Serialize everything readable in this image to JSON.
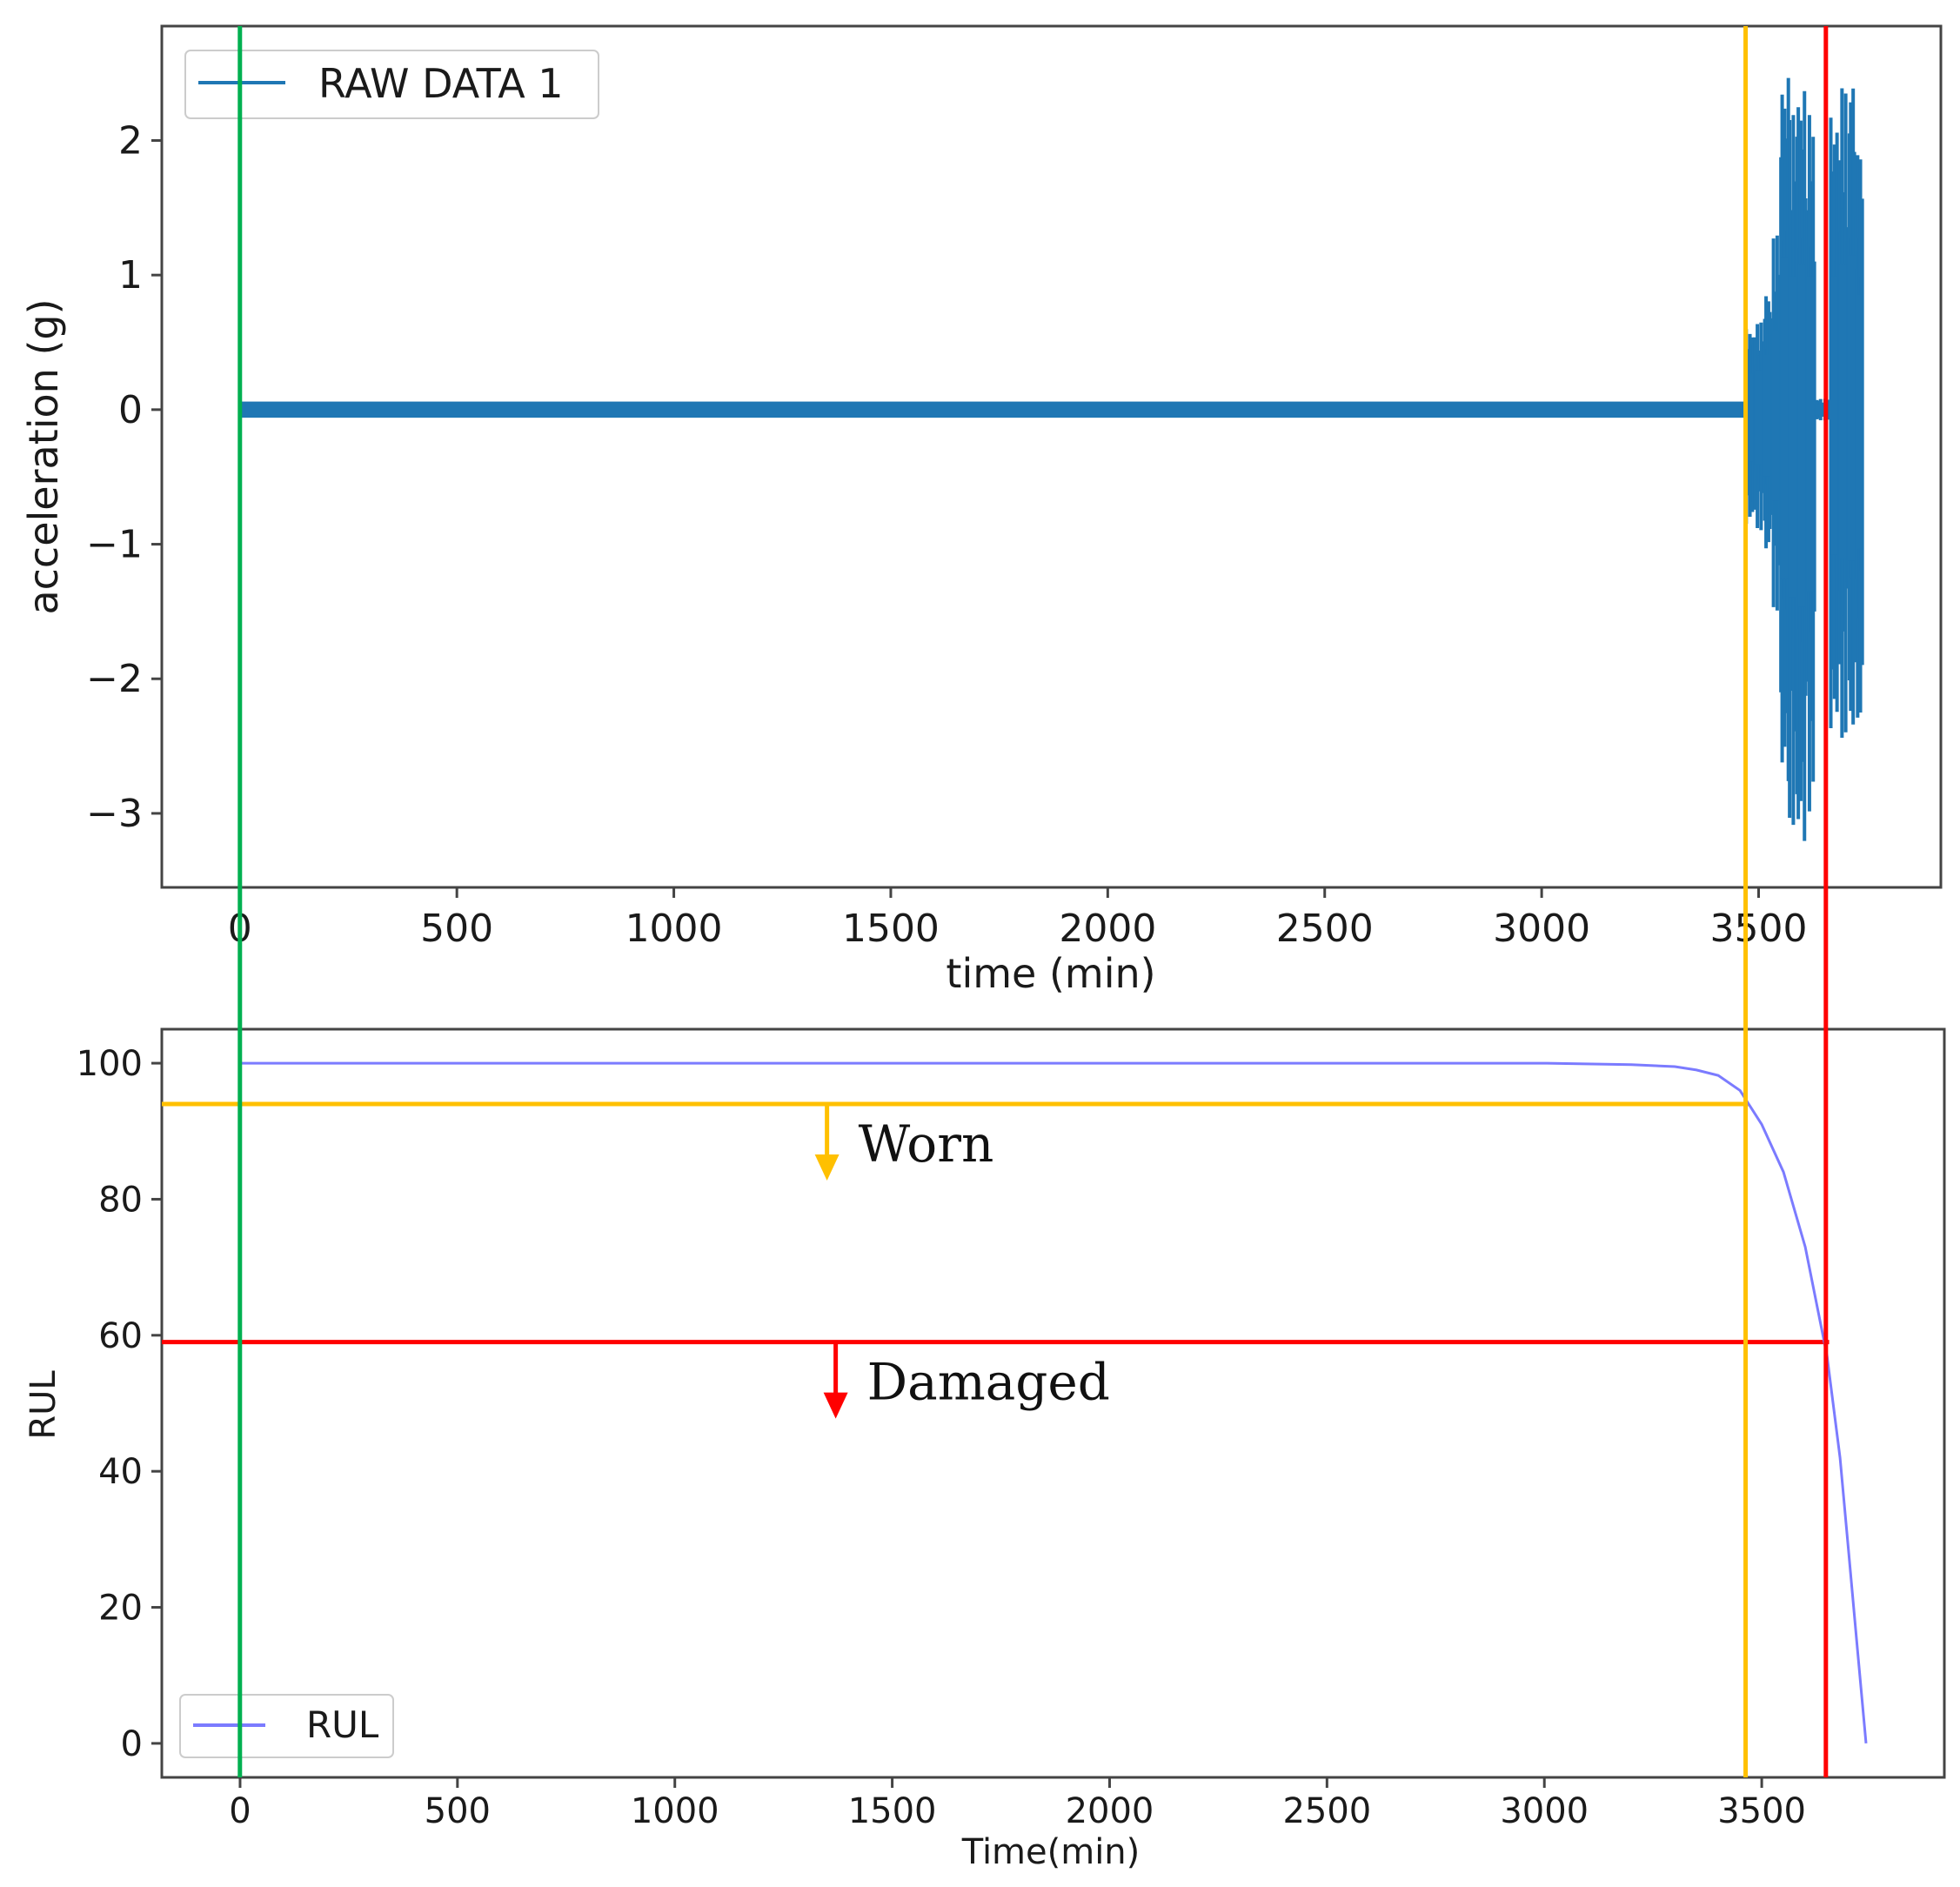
{
  "chart_data": [
    {
      "type": "line",
      "xlabel": "time (min)",
      "ylabel": "acceleration (g)",
      "xlim": [
        -180,
        3920
      ],
      "ylim": [
        -3.55,
        2.85
      ],
      "xticks": [
        0,
        500,
        1000,
        1500,
        2000,
        2500,
        3000,
        3500
      ],
      "yticks": [
        2,
        1,
        0,
        -1,
        -2,
        -3
      ],
      "ytick_labels": [
        "2",
        "1",
        "0",
        "−1",
        "−2",
        "−3"
      ],
      "legend": {
        "placement": "top-left",
        "entries": [
          "RAW DATA 1"
        ]
      },
      "grid": false,
      "series": [
        {
          "name": "RAW DATA 1",
          "color": "#1f77b4",
          "segments": [
            {
              "x_start": 0,
              "x_end": 3470,
              "min": -0.06,
              "max": 0.06
            },
            {
              "x_start": 3470,
              "x_end": 3490,
              "min": -0.85,
              "max": 0.6
            },
            {
              "x_start": 3490,
              "x_end": 3510,
              "min": -0.9,
              "max": 0.65
            },
            {
              "x_start": 3510,
              "x_end": 3530,
              "min": -1.1,
              "max": 0.9
            },
            {
              "x_start": 3530,
              "x_end": 3550,
              "min": -1.5,
              "max": 1.3
            },
            {
              "x_start": 3550,
              "x_end": 3570,
              "min": -2.8,
              "max": 2.5
            },
            {
              "x_start": 3570,
              "x_end": 3590,
              "min": -3.1,
              "max": 2.2
            },
            {
              "x_start": 3590,
              "x_end": 3610,
              "min": -3.25,
              "max": 2.4
            },
            {
              "x_start": 3610,
              "x_end": 3630,
              "min": -3.0,
              "max": 2.2
            },
            {
              "x_start": 3630,
              "x_end": 3650,
              "min": -0.08,
              "max": 0.08
            },
            {
              "x_start": 3650,
              "x_end": 3665,
              "min": -0.08,
              "max": 0.08
            },
            {
              "x_start": 3665,
              "x_end": 3685,
              "min": -2.4,
              "max": 2.2
            },
            {
              "x_start": 3685,
              "x_end": 3705,
              "min": -2.45,
              "max": 2.4
            },
            {
              "x_start": 3705,
              "x_end": 3725,
              "min": -2.5,
              "max": 2.55
            },
            {
              "x_start": 3725,
              "x_end": 3740,
              "min": -2.3,
              "max": 1.9
            }
          ]
        }
      ]
    },
    {
      "type": "line",
      "xlabel": "Time(min)",
      "ylabel": "RUL",
      "xlim": [
        -180,
        3920
      ],
      "ylim": [
        -5,
        105
      ],
      "xticks": [
        0,
        500,
        1000,
        1500,
        2000,
        2500,
        3000,
        3500
      ],
      "yticks": [
        0,
        20,
        40,
        60,
        80,
        100
      ],
      "legend": {
        "placement": "bottom-left",
        "entries": [
          "RUL"
        ]
      },
      "grid": false,
      "series": [
        {
          "name": "RUL",
          "color": "#7b7bff",
          "x": [
            0,
            500,
            1000,
            1500,
            2000,
            2500,
            3000,
            3200,
            3300,
            3350,
            3400,
            3450,
            3470,
            3500,
            3550,
            3600,
            3650,
            3680,
            3700,
            3720,
            3740
          ],
          "y": [
            100,
            100,
            100,
            100,
            100,
            100,
            100,
            99.8,
            99.5,
            99,
            98.2,
            96,
            94,
            91,
            84,
            73,
            57,
            42,
            28,
            14,
            0
          ]
        }
      ],
      "thresholds": [
        {
          "label": "Worn",
          "y": 94,
          "x_end": 3470,
          "color": "#ffc000",
          "arrow_x": 1350
        },
        {
          "label": "Damaged",
          "y": 59,
          "x_end": 3655,
          "color": "#ff0000",
          "arrow_x": 1370
        }
      ]
    }
  ],
  "markers": [
    {
      "x": 0,
      "color": "#00b050"
    },
    {
      "x": 3470,
      "color": "#ffc000"
    },
    {
      "x": 3655,
      "color": "#ff0000"
    }
  ]
}
